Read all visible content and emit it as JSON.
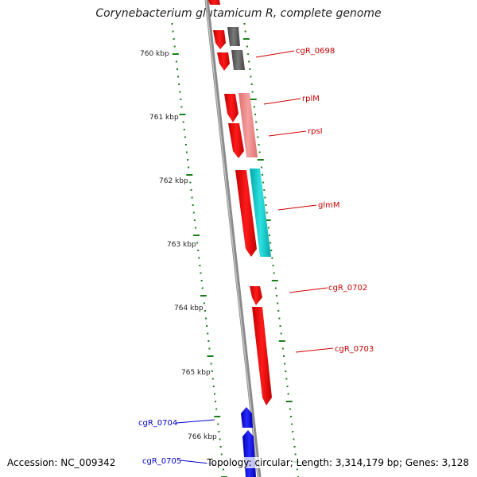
{
  "title": "Corynebacterium glutamicum R, complete genome",
  "footer": {
    "accession": "Accession: NC_009342",
    "summary": "Topology: circular; Length: 3,314,179 bp; Genes: 3,128"
  },
  "colors": {
    "forward_gene": "#ff0000",
    "forward_gene_light": "#f08080",
    "reverse_gene": "#0000ff",
    "other_gene": "#555555",
    "cyan_gene": "#00c8c8",
    "tick": "#1a7f1a",
    "backbone": "#808080",
    "forward_label": "#c80000",
    "reverse_label": "#0000c8"
  },
  "kbp_labels": [
    "760 kbp",
    "761 kbp",
    "762 kbp",
    "763 kbp",
    "764 kbp",
    "765 kbp",
    "766 kbp"
  ],
  "genes": [
    {
      "label": "cgR_0698",
      "strand": "forward"
    },
    {
      "label": "rplM",
      "strand": "forward"
    },
    {
      "label": "rpsI",
      "strand": "forward"
    },
    {
      "label": "glmM",
      "strand": "forward"
    },
    {
      "label": "cgR_0702",
      "strand": "forward"
    },
    {
      "label": "cgR_0703",
      "strand": "forward"
    },
    {
      "label": "cgR_0704",
      "strand": "reverse"
    },
    {
      "label": "cgR_0705",
      "strand": "reverse"
    }
  ]
}
